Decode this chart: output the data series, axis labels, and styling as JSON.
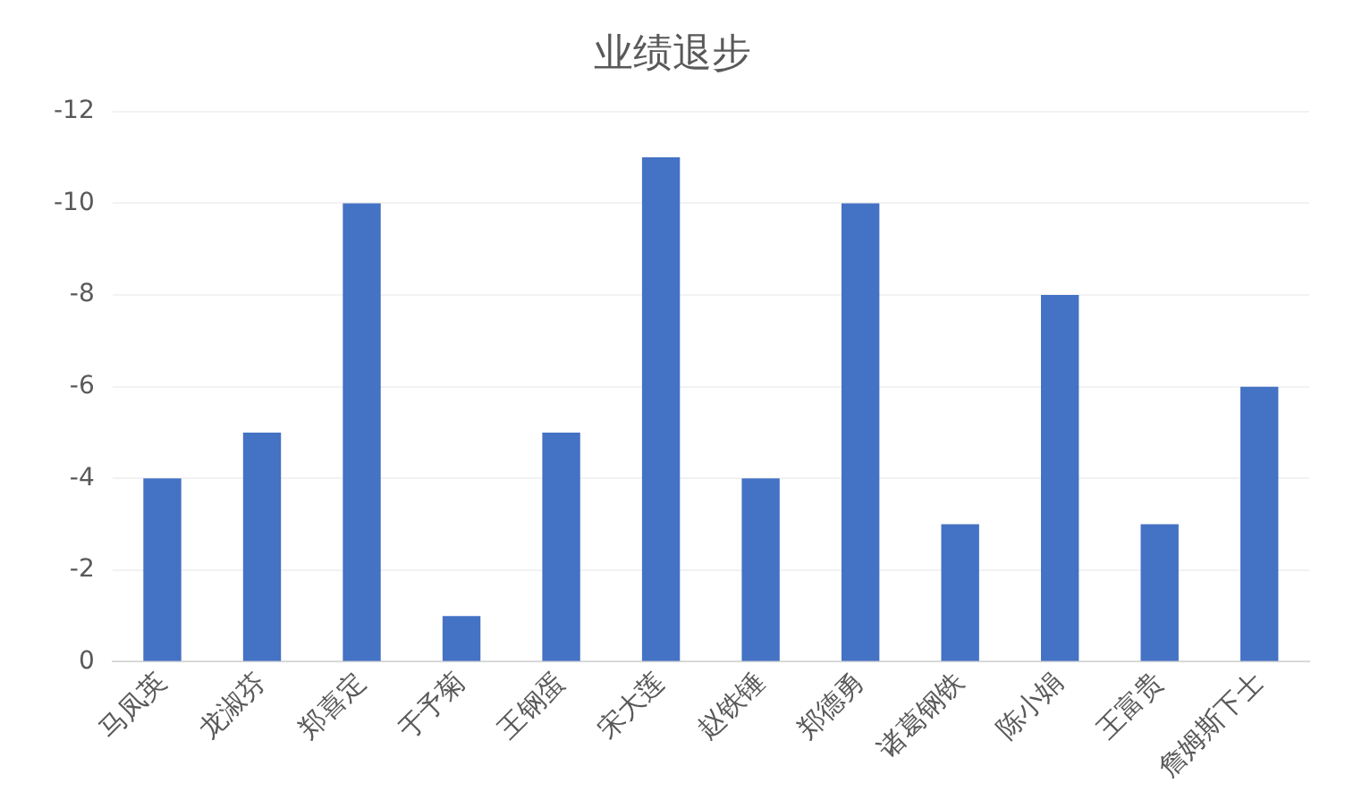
{
  "chart_data": {
    "type": "bar",
    "title": "业绩退步",
    "categories": [
      "马凤英",
      "龙淑芬",
      "郑喜定",
      "于予菊",
      "王钢蛋",
      "宋大莲",
      "赵铁锤",
      "郑德勇",
      "诸葛钢铁",
      "陈小娟",
      "王富贵",
      "詹姆斯下士"
    ],
    "values": [
      -4,
      -5,
      -10,
      -1,
      -5,
      -11,
      -4,
      -10,
      -3,
      -8,
      -3,
      -6
    ],
    "color": "#4472c4",
    "ylim": [
      0,
      -12
    ],
    "yticks": [
      0,
      -2,
      -4,
      -6,
      -8,
      -10,
      -12
    ],
    "grid": "y"
  }
}
